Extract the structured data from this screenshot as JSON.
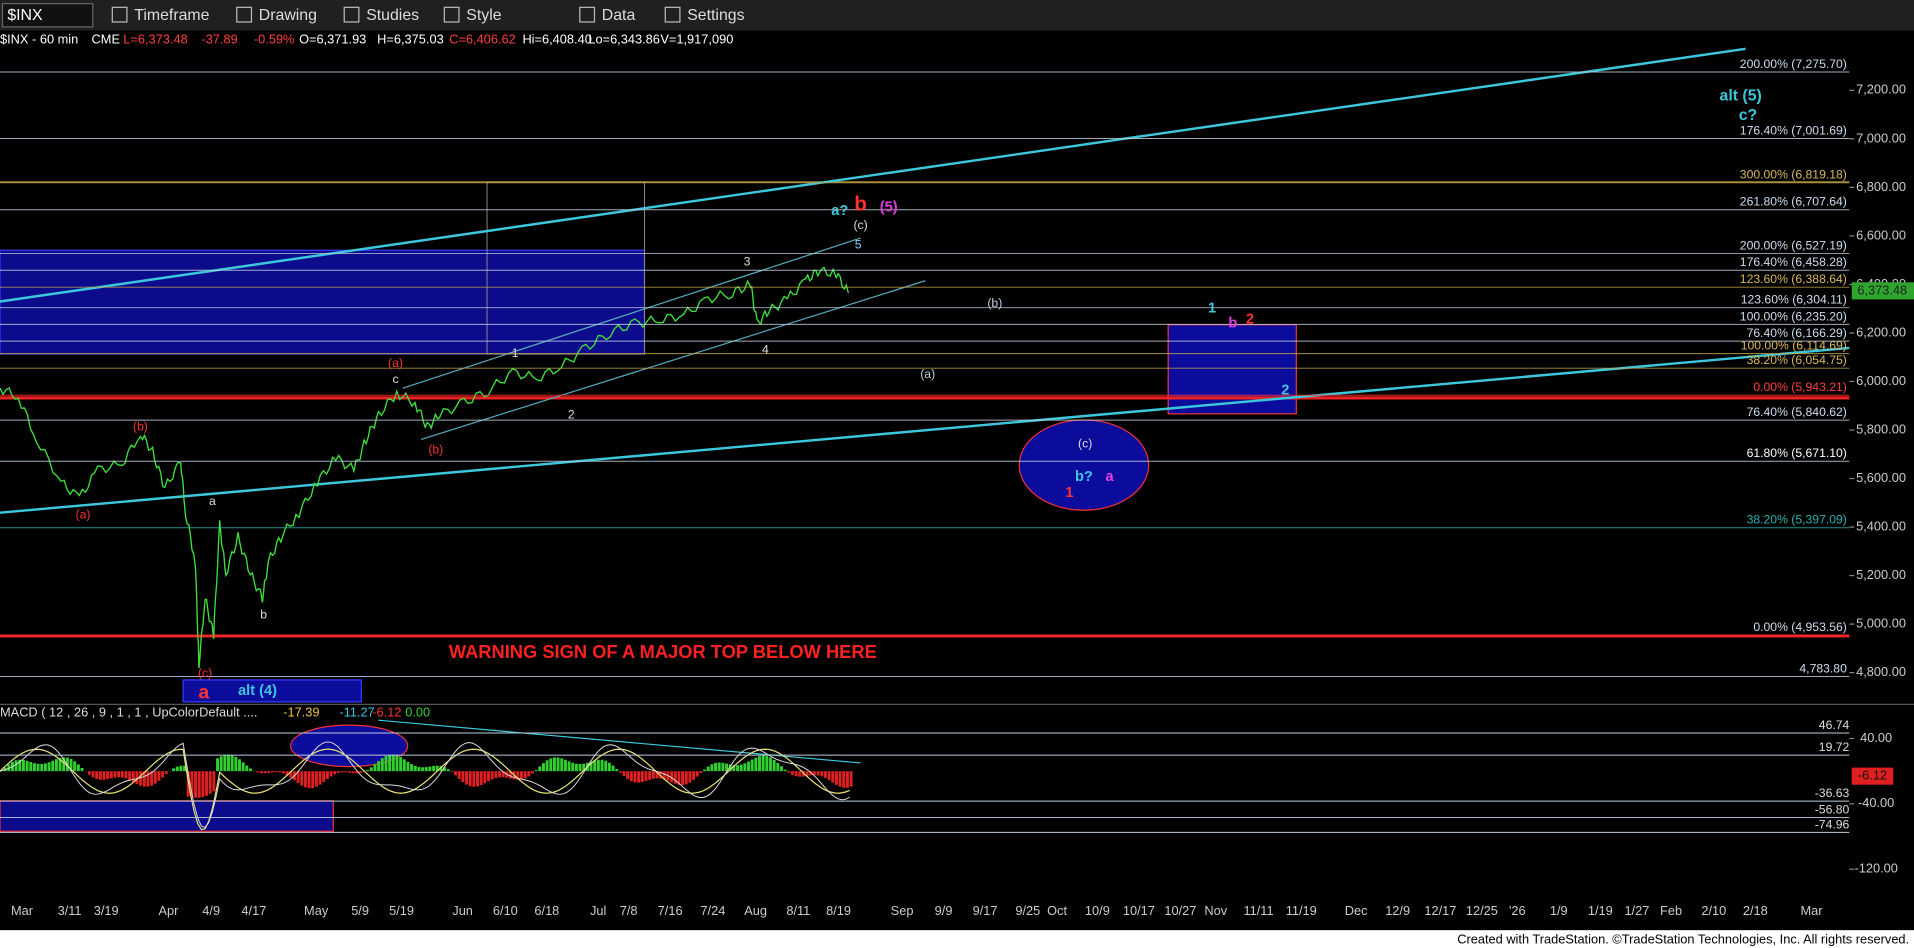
{
  "toolbar": {
    "symbol": "$INX",
    "menus": [
      "Timeframe",
      "Drawing",
      "Studies",
      "Style",
      "Data",
      "Settings"
    ]
  },
  "quote": [
    "$INX - 60 min",
    "CME",
    "L=6,373.48",
    "-37.89",
    "-0.59%",
    "O=6,371.93",
    "H=6,375.03",
    "C=6,406.62",
    "Hi=6,408.40",
    "Lo=6,343.86",
    "V=1,917,090"
  ],
  "price_axis": {
    "ticks": [
      {
        "value": 7200,
        "label": "7,200.00"
      },
      {
        "value": 7000,
        "label": "7,000.00"
      },
      {
        "value": 6800,
        "label": "6,800.00"
      },
      {
        "value": 6600,
        "label": "6,600.00"
      },
      {
        "value": 6400,
        "label": "6,400.00"
      },
      {
        "value": 6200,
        "label": "6,200.00"
      },
      {
        "value": 6000,
        "label": "6,000.00"
      },
      {
        "value": 5800,
        "label": "5,800.00"
      },
      {
        "value": 5600,
        "label": "5,600.00"
      },
      {
        "value": 5400,
        "label": "5,400.00"
      },
      {
        "value": 5200,
        "label": "5,200.00"
      },
      {
        "value": 5000,
        "label": "5,000.00"
      },
      {
        "value": 4800,
        "label": "4,800.00"
      }
    ],
    "last": {
      "value": 6373.48,
      "label": "6,373.48"
    }
  },
  "fib_levels": [
    {
      "value": 7275.7,
      "label": "200.00% (7,275.70)"
    },
    {
      "value": 7001.69,
      "label": "176.40% (7,001.69)"
    },
    {
      "value": 6819.18,
      "label": "300.00% (6,819.18)"
    },
    {
      "value": 6707.64,
      "label": "261.80% (6,707.64)"
    },
    {
      "value": 6527.19,
      "label": "200.00% (6,527.19)"
    },
    {
      "value": 6458.28,
      "label": "176.40% (6,458.28)"
    },
    {
      "value": 6388.64,
      "label": "123.60% (6,388.64)"
    },
    {
      "value": 6304.11,
      "label": "123.60% (6,304.11)"
    },
    {
      "value": 6235.2,
      "label": "100.00% (6,235.20)"
    },
    {
      "value": 6166.29,
      "label": "76.40% (6,166.29)"
    },
    {
      "value": 6114.69,
      "label": "100.00% (6,114.69)"
    },
    {
      "value": 6054.75,
      "label": "38.20% (6,054.75)"
    },
    {
      "value": 5943.21,
      "label": "0.00% (5,943.21)"
    },
    {
      "value": 5840.62,
      "label": "76.40% (5,840.62)"
    },
    {
      "value": 5671.1,
      "label": "61.80% (5,671.10)"
    },
    {
      "value": 5397.09,
      "label": "38.20% (5,397.09)"
    },
    {
      "value": 4953.56,
      "label": "0.00% (4,953.56)"
    },
    {
      "value": 4783.8,
      "label": "4,783.80"
    }
  ],
  "wave_labels": [
    "alt (5)",
    "c?",
    "a?",
    "b",
    "(5)",
    "(c)",
    "5",
    "3",
    "4",
    "1",
    "2",
    "(b)",
    "(a)",
    "1",
    "b",
    "2",
    "2",
    "(c)",
    "b?",
    "a",
    "1",
    "(a)",
    "c",
    "(b)",
    "(b)",
    "(a)",
    "a",
    "b",
    "(c)",
    "a",
    "alt (4)"
  ],
  "warning": "WARNING SIGN OF A MAJOR TOP BELOW HERE",
  "dates": [
    "Mar",
    "3/11",
    "3/19",
    "Apr",
    "4/9",
    "4/17",
    "May",
    "5/9",
    "5/19",
    "Jun",
    "6/10",
    "6/18",
    "Jul",
    "7/8",
    "7/16",
    "7/24",
    "Aug",
    "8/11",
    "8/19",
    "Sep",
    "9/9",
    "9/17",
    "9/25",
    "Oct",
    "10/9",
    "10/17",
    "10/27",
    "Nov",
    "11/11",
    "11/19",
    "Dec",
    "12/9",
    "12/17",
    "12/25",
    "'26",
    "1/9",
    "1/19",
    "1/27",
    "Feb",
    "2/10",
    "2/18",
    "Mar"
  ],
  "macd": {
    "title": "MACD ( 12 , 26 , 9 , 1 , 1 , UpColorDefault ....",
    "values": [
      "-17.39",
      "-11.27",
      "-6.12",
      "0.00"
    ],
    "axis": [
      {
        "value": 46.74,
        "label": "46.74"
      },
      {
        "value": 40,
        "label": "40.00"
      },
      {
        "value": 19.72,
        "label": "19.72"
      },
      {
        "value": -36.63,
        "label": "-36.63"
      },
      {
        "value": -40,
        "label": "-40.00"
      },
      {
        "value": -56.8,
        "label": "-56.80"
      },
      {
        "value": -74.96,
        "label": "-74.96"
      },
      {
        "value": -120,
        "label": "-120.00"
      }
    ],
    "last": {
      "value": -6.12,
      "label": "-6.12"
    }
  },
  "footer": "Created with TradeStation. ©TradeStation Technologies, Inc. All rights reserved."
}
